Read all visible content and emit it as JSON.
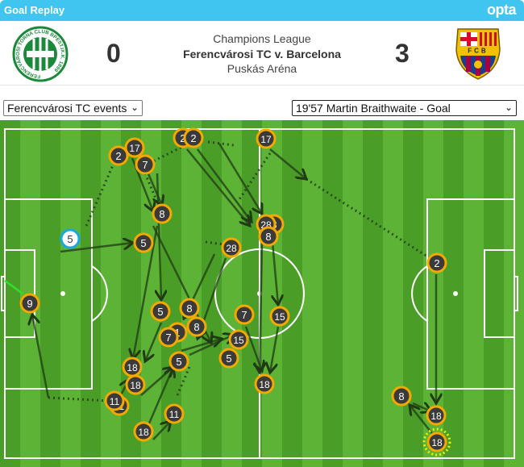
{
  "header": {
    "title": "Goal Replay",
    "brand": "opta"
  },
  "match": {
    "competition": "Champions League",
    "fixture": "Ferencvárosi TC v. Barcelona",
    "venue": "Puskás Aréna",
    "home": {
      "name": "Ferencvárosi TC",
      "score": "0",
      "crest_text": "FERENCVÁROSI TORNA CLUB BPEST.IX.K. 1899",
      "color": "#1a8a3a"
    },
    "away": {
      "name": "Barcelona",
      "score": "3",
      "crest_text": "FCB",
      "color": "#a50044"
    }
  },
  "controls": {
    "team_filter": "Ferencvárosi TC events",
    "event_select": "19'57 Martin Braithwaite - Goal"
  },
  "colors": {
    "pitch_dark": "#4a9e27",
    "pitch_light": "#5cb336",
    "marker_ring": "#f5a800",
    "marker_fill": "#3a3a3a",
    "highlight_ring": "#1aa7e0",
    "goal_ring": "#f0f000"
  },
  "markers": [
    "5",
    "5",
    "2",
    "17",
    "7",
    "8",
    "2",
    "2",
    "17",
    "3",
    "28",
    "8",
    "28",
    "9",
    "5",
    "8",
    "8",
    "1",
    "7",
    "15",
    "5",
    "7",
    "15",
    "5",
    "18",
    "18",
    "11",
    "11",
    "11",
    "18",
    "18",
    "2",
    "8",
    "18",
    "18"
  ]
}
